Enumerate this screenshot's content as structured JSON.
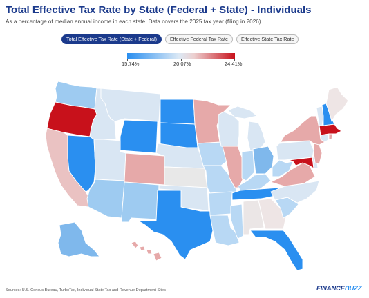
{
  "title": "Total Effective Tax Rate by State (Federal + State) - Individuals",
  "subtitle": "As a percentage of median annual income in each state. Data covers the 2025 tax year (filing in 2026).",
  "tabs": [
    {
      "label": "Total Effective Tax Rate (State + Federal)",
      "active": true
    },
    {
      "label": "Effective Federal Tax Rate",
      "active": false
    },
    {
      "label": "Effective State Tax Rate",
      "active": false
    }
  ],
  "legend": {
    "min_label": "15.74%",
    "mid_label": "20.07%",
    "max_label": "24.41%",
    "color_low": "#2a8ff0",
    "color_mid": "#dce9f5",
    "color_high": "#c8111b"
  },
  "map_fills": {
    "WA": "#9ecbf1",
    "OR": "#c8111b",
    "CA": "#eac2c2",
    "NV": "#2a8ff0",
    "ID": "#d9e6f3",
    "MT": "#d9e6f3",
    "WY": "#2a8ff0",
    "UT": "#d9e6f3",
    "AZ": "#9ecbf1",
    "CO": "#e6a9a9",
    "NM": "#9ecbf1",
    "ND": "#2a8ff0",
    "SD": "#2a8ff0",
    "NE": "#d9e6f3",
    "KS": "#e8e8e8",
    "OK": "#d9e6f3",
    "TX": "#2a8ff0",
    "MN": "#e6a9a9",
    "IA": "#b8d8f4",
    "MO": "#b8d8f4",
    "AR": "#b8d8f4",
    "LA": "#b8d8f4",
    "WI": "#d9e6f3",
    "IL": "#e6a9a9",
    "MS": "#b8d8f4",
    "MI": "#d9e6f3",
    "IN": "#b8d8f4",
    "KY": "#b8d8f4",
    "TN": "#2a8ff0",
    "AL": "#ebe6e6",
    "GA": "#eee5e5",
    "FL": "#2a8ff0",
    "OH": "#7fb8ec",
    "WV": "#b8d8f4",
    "VA": "#e6a9a9",
    "NC": "#d9e6f3",
    "SC": "#b8d8f4",
    "PA": "#d9e6f3",
    "NY": "#e6a9a9",
    "VT": "#d9e6f3",
    "NH": "#2a8ff0",
    "ME": "#eee5e5",
    "MA": "#c8111b",
    "RI": "#e6a9a9",
    "CT": "#d9e6f3",
    "NJ": "#e6a9a9",
    "DE": "#d9e6f3",
    "MD": "#c8111b",
    "AK": "#7fb8ec",
    "HI": "#e6a9a9"
  },
  "sources": {
    "prefix": "Sources: ",
    "link1": "U.S. Census Bureau",
    "sep": ", ",
    "link2": "TurboTax",
    "suffix": ", Individual State Tax and Revenue Department Sites"
  },
  "logo": {
    "part1": "FINANCE",
    "part2": "BUZZ"
  }
}
